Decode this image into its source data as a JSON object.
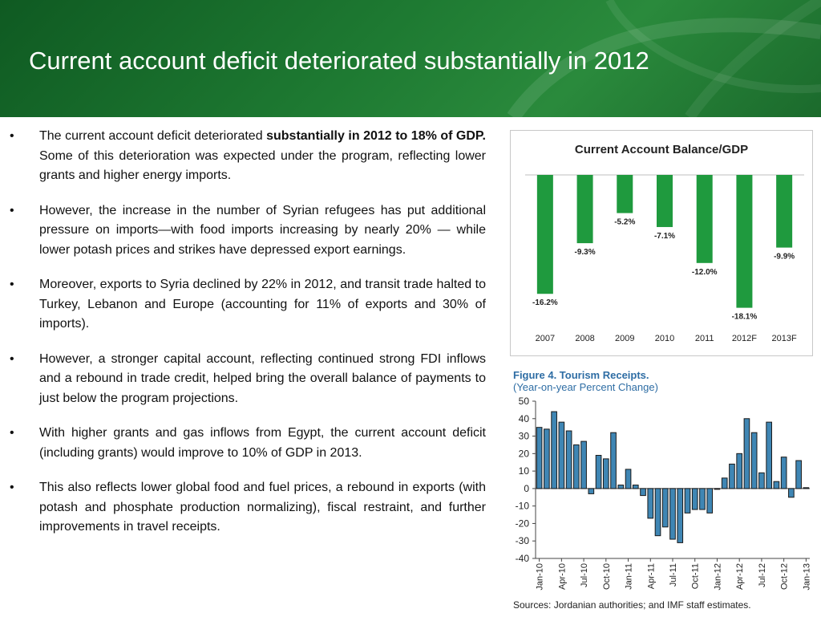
{
  "slide": {
    "title": "Current account deficit deteriorated substantially in 2012",
    "bullet_char": "•",
    "bullets": [
      {
        "pre": "The current account deficit deteriorated ",
        "bold": "substantially in 2012 to 18% of GDP.",
        "post": " Some of this deterioration was expected under the program, reflecting lower grants and higher energy imports."
      },
      {
        "pre": "However, the increase in the number of Syrian refugees has put additional pressure on imports—with food imports increasing by nearly 20% — while lower potash prices and strikes have depressed export earnings.",
        "bold": "",
        "post": ""
      },
      {
        "pre": "Moreover, exports to Syria declined  by 22% in 2012, and transit trade halted to Turkey, Lebanon and Europe (accounting for 11% of exports and 30% of imports).",
        "bold": "",
        "post": ""
      },
      {
        "pre": "However, a stronger capital account, reflecting continued strong FDI inflows and a rebound in trade credit, helped bring the overall balance of payments to just below the program projections.",
        "bold": "",
        "post": ""
      },
      {
        "pre": "With higher grants and gas inflows from Egypt, the current account deficit (including grants) would improve to 10% of GDP in 2013.",
        "bold": "",
        "post": ""
      },
      {
        "pre": "This also reflects lower global food and fuel prices, a rebound in exports (with potash and phosphate production normalizing), fiscal restraint, and further improvements in travel receipts.",
        "bold": "",
        "post": ""
      }
    ]
  },
  "colors": {
    "header_green": "#1e7a32",
    "bar_green": "#1f9a3e",
    "bar_blue": "#3f86b4",
    "figure_title_blue": "#2e6da4"
  },
  "chart_data": [
    {
      "type": "bar",
      "title": "Current Account Balance/GDP",
      "categories": [
        "2007",
        "2008",
        "2009",
        "2010",
        "2011",
        "2012F",
        "2013F"
      ],
      "values": [
        -16.2,
        -9.3,
        -5.2,
        -7.1,
        -12.0,
        -18.1,
        -9.9
      ],
      "labels": [
        "-16.2%",
        "-9.3%",
        "-5.2%",
        "-7.1%",
        "-12.0%",
        "-18.1%",
        "-9.9%"
      ],
      "ylim": [
        -20,
        0
      ],
      "grid": false,
      "legend": "none"
    },
    {
      "type": "bar",
      "title": "Figure 4. Tourism Receipts.",
      "subtitle": "(Year-on-year Percent Change)",
      "source": "Sources: Jordanian authorities; and IMF staff estimates.",
      "ylim": [
        -40,
        50
      ],
      "yticks": [
        50,
        40,
        30,
        20,
        10,
        0,
        -10,
        -20,
        -30,
        -40
      ],
      "x": [
        "Jan-10",
        "Feb-10",
        "Mar-10",
        "Apr-10",
        "May-10",
        "Jun-10",
        "Jul-10",
        "Aug-10",
        "Sep-10",
        "Oct-10",
        "Nov-10",
        "Dec-10",
        "Jan-11",
        "Feb-11",
        "Mar-11",
        "Apr-11",
        "May-11",
        "Jun-11",
        "Jul-11",
        "Aug-11",
        "Sep-11",
        "Oct-11",
        "Nov-11",
        "Dec-11",
        "Jan-12",
        "Feb-12",
        "Mar-12",
        "Apr-12",
        "May-12",
        "Jun-12",
        "Jul-12",
        "Aug-12",
        "Sep-12",
        "Oct-12",
        "Nov-12",
        "Dec-12",
        "Jan-13"
      ],
      "values": [
        35,
        34,
        44,
        38,
        33,
        25,
        27,
        -3,
        19,
        17,
        32,
        2,
        11,
        2,
        -4,
        -17,
        -27,
        -22,
        -29,
        -31,
        -14,
        -12,
        -12,
        -14,
        0,
        6,
        14,
        20,
        40,
        32,
        9,
        38,
        4,
        18,
        -5,
        16,
        0.5
      ],
      "xtick_labels": [
        "Jan-10",
        "Apr-10",
        "Jul-10",
        "Oct-10",
        "Jan-11",
        "Apr-11",
        "Jul-11",
        "Oct-11",
        "Jan-12",
        "Apr-12",
        "Jul-12",
        "Oct-12",
        "Jan-13"
      ],
      "xtick_indices": [
        0,
        3,
        6,
        9,
        12,
        15,
        18,
        21,
        24,
        27,
        30,
        33,
        36
      ],
      "grid": false,
      "legend": "none"
    }
  ]
}
